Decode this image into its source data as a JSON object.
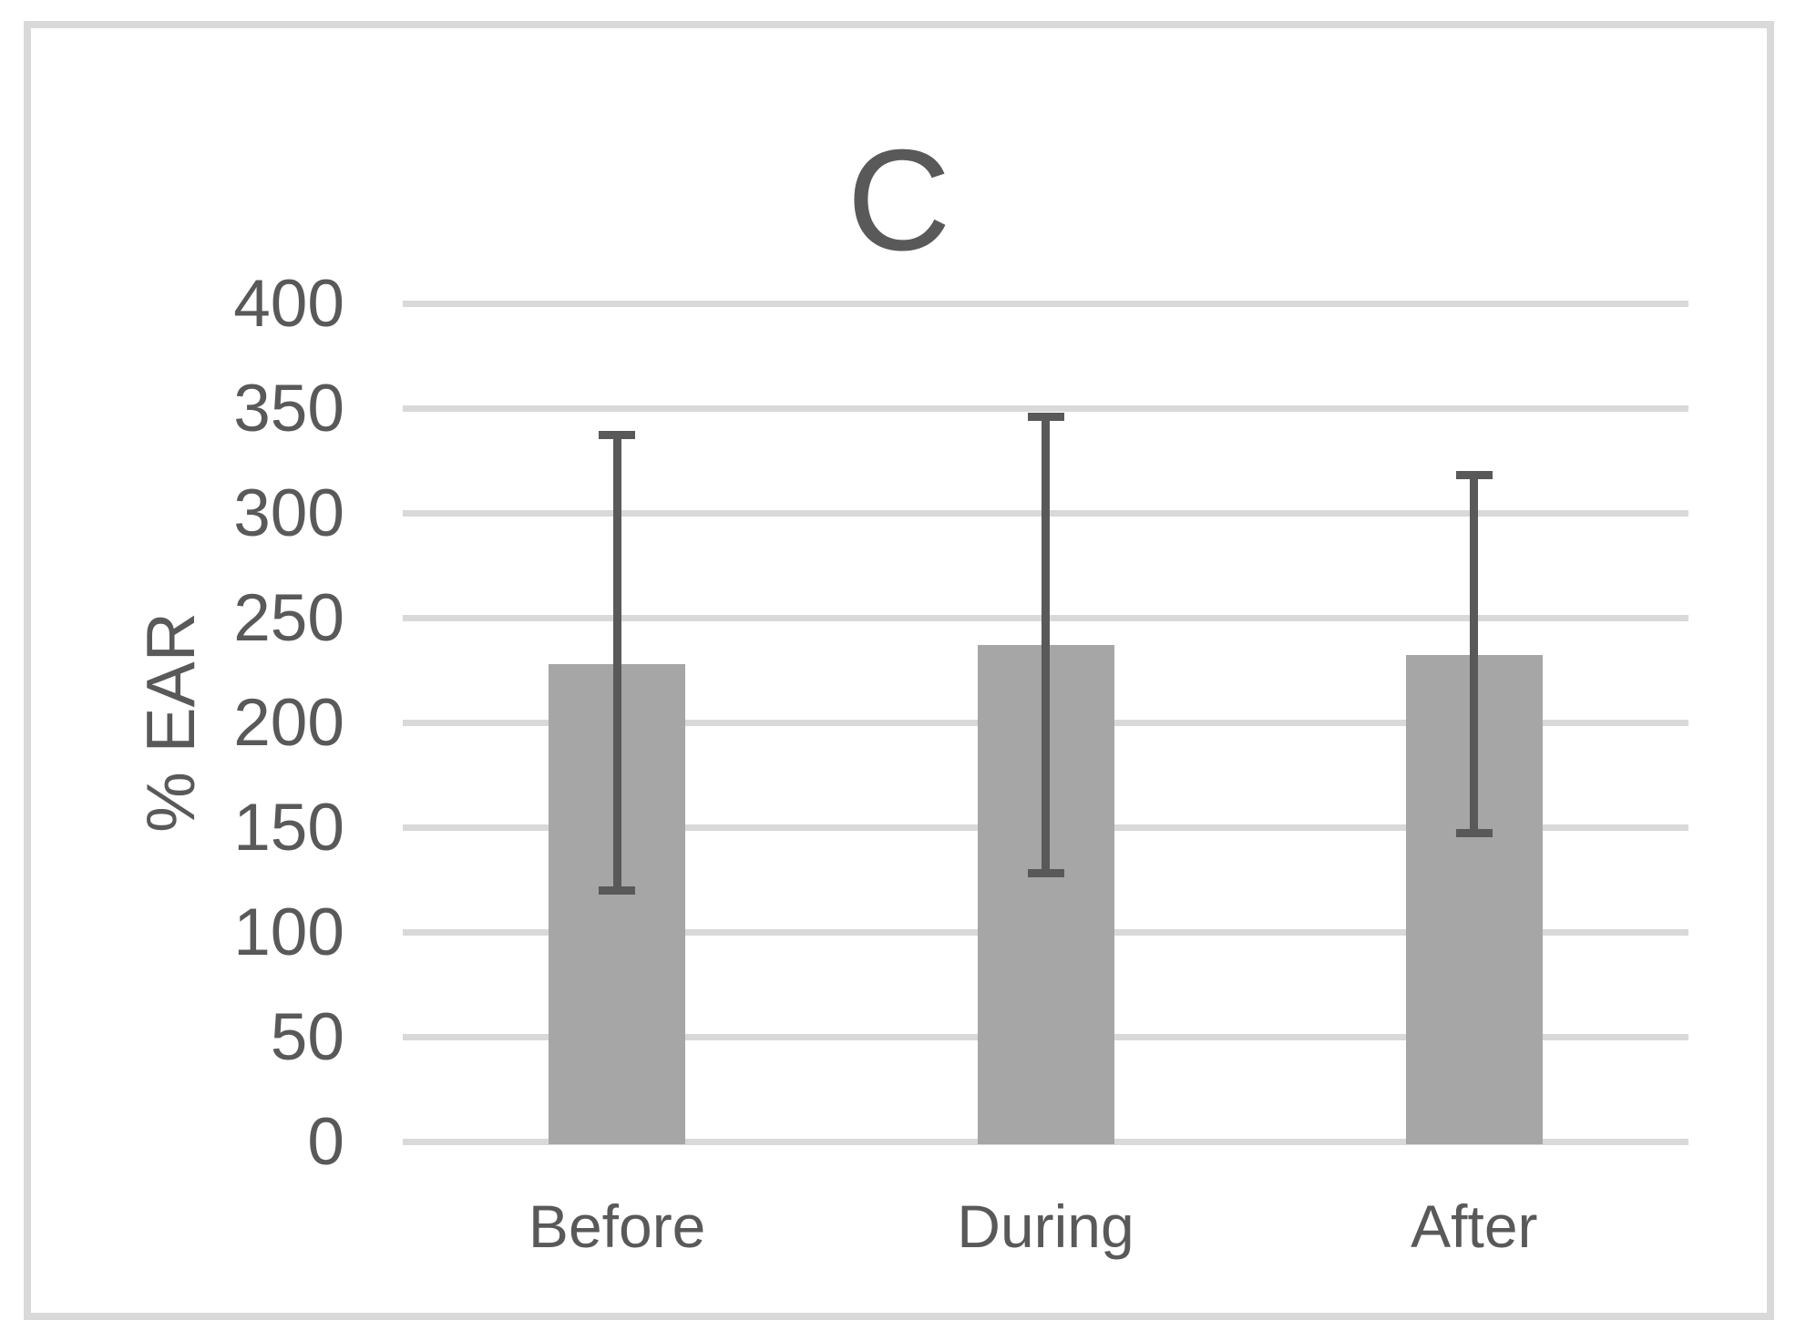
{
  "chart_data": {
    "type": "bar",
    "title": "C",
    "categories": [
      "Before",
      "During",
      "After"
    ],
    "values": [
      228,
      237,
      232
    ],
    "error_low": [
      120,
      128,
      147
    ],
    "error_high": [
      337,
      346,
      318
    ],
    "xlabel": "",
    "ylabel": "% EAR",
    "ylim": [
      0,
      400
    ],
    "yticks": [
      0,
      50,
      100,
      150,
      200,
      250,
      300,
      350,
      400
    ],
    "grid": true,
    "legend": false,
    "colors": {
      "bar": "#a6a6a6",
      "error": "#595959",
      "grid": "#d9d9d9",
      "text": "#595959",
      "frame": "#d9d9d9",
      "background": "#ffffff"
    }
  }
}
